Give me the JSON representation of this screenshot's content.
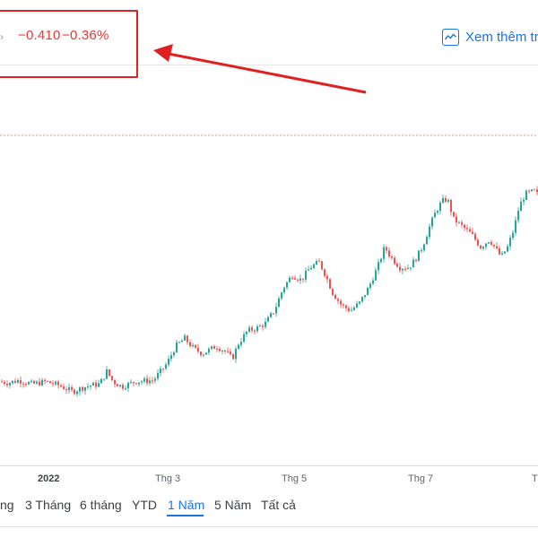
{
  "quote": {
    "change_absolute": "−0.410",
    "change_percent": "−0.36%",
    "color_negative": "#e53935"
  },
  "header": {
    "more_link_label": "Xem thêm tr",
    "more_link_icon": "trend-chart-icon",
    "accent_color": "#1a73e8"
  },
  "annotation": {
    "box_color": "#e02020",
    "arrow_color": "#e02020"
  },
  "chart_data": {
    "type": "candlestick",
    "period": "1 Năm",
    "up_color": "#26a69a",
    "down_color": "#ef5350",
    "reference_line_color": "#f28b82",
    "x_tick_labels": [
      "2022",
      "Thg 3",
      "Thg 5",
      "Thg 7",
      "T"
    ],
    "anchor_path_values": [
      [
        0,
        33
      ],
      [
        8,
        32.5
      ],
      [
        20,
        33.5
      ],
      [
        35,
        32
      ],
      [
        50,
        33
      ],
      [
        65,
        31.5
      ],
      [
        80,
        29
      ],
      [
        90,
        30.5
      ],
      [
        100,
        31.5
      ],
      [
        110,
        32
      ],
      [
        118,
        37
      ],
      [
        125,
        33
      ],
      [
        135,
        31
      ],
      [
        150,
        33
      ],
      [
        170,
        33.5
      ],
      [
        185,
        40
      ],
      [
        195,
        47
      ],
      [
        205,
        50
      ],
      [
        215,
        46
      ],
      [
        225,
        44
      ],
      [
        240,
        47
      ],
      [
        250,
        45
      ],
      [
        258,
        42
      ],
      [
        265,
        48
      ],
      [
        275,
        53
      ],
      [
        285,
        54
      ],
      [
        295,
        56
      ],
      [
        305,
        61
      ],
      [
        315,
        70
      ],
      [
        325,
        75
      ],
      [
        335,
        73
      ],
      [
        345,
        78
      ],
      [
        355,
        80
      ],
      [
        362,
        75
      ],
      [
        370,
        68
      ],
      [
        380,
        63
      ],
      [
        390,
        61
      ],
      [
        400,
        64
      ],
      [
        410,
        70
      ],
      [
        420,
        78
      ],
      [
        428,
        86
      ],
      [
        435,
        82
      ],
      [
        445,
        78
      ],
      [
        455,
        78
      ],
      [
        462,
        81
      ],
      [
        470,
        86
      ],
      [
        478,
        94
      ],
      [
        485,
        100
      ],
      [
        492,
        104
      ],
      [
        498,
        105
      ],
      [
        505,
        97
      ],
      [
        515,
        94
      ],
      [
        525,
        91
      ],
      [
        535,
        86
      ],
      [
        545,
        89
      ],
      [
        558,
        82
      ],
      [
        565,
        86
      ],
      [
        572,
        93
      ],
      [
        578,
        102
      ],
      [
        585,
        107
      ],
      [
        595,
        108
      ],
      [
        600,
        106
      ]
    ],
    "y_range": [
      0,
      130
    ]
  },
  "ranges": [
    "ng",
    "3 Tháng",
    "6 tháng",
    "YTD",
    "1 Năm",
    "5 Năm",
    "Tất cả"
  ],
  "active_range": "1 Năm"
}
